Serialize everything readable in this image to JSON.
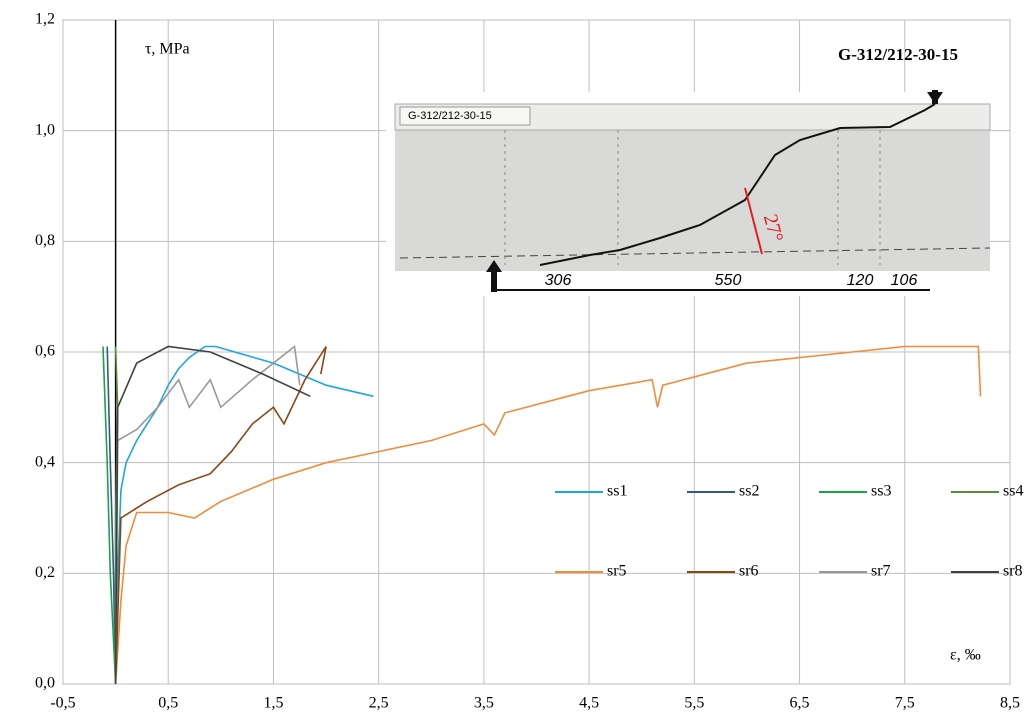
{
  "chart_data": {
    "type": "line",
    "title": "G-312/212-30-15",
    "y_label": "τ, MPa",
    "x_label": "ε, ‰",
    "xlim": [
      -0.5,
      8.5
    ],
    "xticks": [
      {
        "value": -0.5,
        "label": "-0,5"
      },
      {
        "value": 0.5,
        "label": "0,5"
      },
      {
        "value": 1.5,
        "label": "1,5"
      },
      {
        "value": 2.5,
        "label": "2,5"
      },
      {
        "value": 3.5,
        "label": "3,5"
      },
      {
        "value": 4.5,
        "label": "4,5"
      },
      {
        "value": 5.5,
        "label": "5,5"
      },
      {
        "value": 6.5,
        "label": "6,5"
      },
      {
        "value": 7.5,
        "label": "7,5"
      },
      {
        "value": 8.5,
        "label": "8,5"
      }
    ],
    "ylim": [
      0,
      1.2
    ],
    "yticks": [
      {
        "value": 0,
        "label": "0,0"
      },
      {
        "value": 0.2,
        "label": "0,2"
      },
      {
        "value": 0.4,
        "label": "0,4"
      },
      {
        "value": 0.6,
        "label": "0,6"
      },
      {
        "value": 0.8,
        "label": "0,8"
      },
      {
        "value": 1.0,
        "label": "1,0"
      },
      {
        "value": 1.2,
        "label": "1,2"
      }
    ],
    "grid": true,
    "legend": "lower right",
    "inset": {
      "label": "G-312/212-30-15",
      "dimensions": [
        "306",
        "550",
        "120",
        "106"
      ],
      "angle": "27°"
    },
    "series": [
      {
        "name": "ss1",
        "color": "#1aa7e0",
        "x": [
          0,
          0.02,
          0.05,
          0.1,
          0.2,
          0.3,
          0.4,
          0.5,
          0.6,
          0.7,
          0.85,
          0.95,
          1.5,
          2.0,
          2.45
        ],
        "values": [
          0,
          0.2,
          0.35,
          0.4,
          0.44,
          0.47,
          0.5,
          0.54,
          0.57,
          0.59,
          0.61,
          0.61,
          0.58,
          0.54,
          0.52
        ]
      },
      {
        "name": "ss2",
        "color": "#2e5c8a",
        "x": [
          0,
          -0.02,
          -0.05,
          -0.08
        ],
        "values": [
          0,
          0.2,
          0.4,
          0.61
        ]
      },
      {
        "name": "ss3",
        "color": "#1aa34a",
        "x": [
          0,
          -0.05,
          -0.08,
          -0.12
        ],
        "values": [
          0,
          0.2,
          0.4,
          0.61
        ]
      },
      {
        "name": "ss4",
        "color": "#5a8a3a",
        "x": [
          0,
          0,
          0.02,
          0
        ],
        "values": [
          0,
          0.3,
          0.5,
          0.61
        ]
      },
      {
        "name": "sr5",
        "color": "#f08c3c",
        "x": [
          0,
          0.05,
          0.1,
          0.2,
          0.5,
          0.75,
          1,
          1.5,
          2,
          2.5,
          3,
          3.5,
          3.6,
          3.7,
          4.5,
          5.1,
          5.15,
          5.2,
          6,
          7,
          7.5,
          8.2,
          8.22
        ],
        "values": [
          0,
          0.15,
          0.25,
          0.31,
          0.31,
          0.3,
          0.33,
          0.37,
          0.4,
          0.42,
          0.44,
          0.47,
          0.45,
          0.49,
          0.53,
          0.55,
          0.5,
          0.54,
          0.58,
          0.6,
          0.61,
          0.61,
          0.52
        ]
      },
      {
        "name": "sr6",
        "color": "#8b4513",
        "x": [
          0,
          0.05,
          0.3,
          0.6,
          0.9,
          1.1,
          1.3,
          1.5,
          1.6,
          1.8,
          2.0,
          1.95
        ],
        "values": [
          0,
          0.3,
          0.33,
          0.36,
          0.38,
          0.42,
          0.47,
          0.5,
          0.47,
          0.55,
          0.61,
          0.56
        ]
      },
      {
        "name": "sr7",
        "color": "#999999",
        "x": [
          0,
          0.02,
          0.2,
          0.4,
          0.6,
          0.7,
          0.9,
          1,
          1.3,
          1.7,
          1.75
        ],
        "values": [
          0,
          0.44,
          0.46,
          0.5,
          0.55,
          0.5,
          0.55,
          0.5,
          0.55,
          0.61,
          0.54
        ]
      },
      {
        "name": "sr8",
        "color": "#404040",
        "x": [
          0,
          0.02,
          0.2,
          0.5,
          0.9,
          1.4,
          1.85
        ],
        "values": [
          0,
          0.5,
          0.58,
          0.61,
          0.6,
          0.56,
          0.52
        ]
      }
    ]
  }
}
